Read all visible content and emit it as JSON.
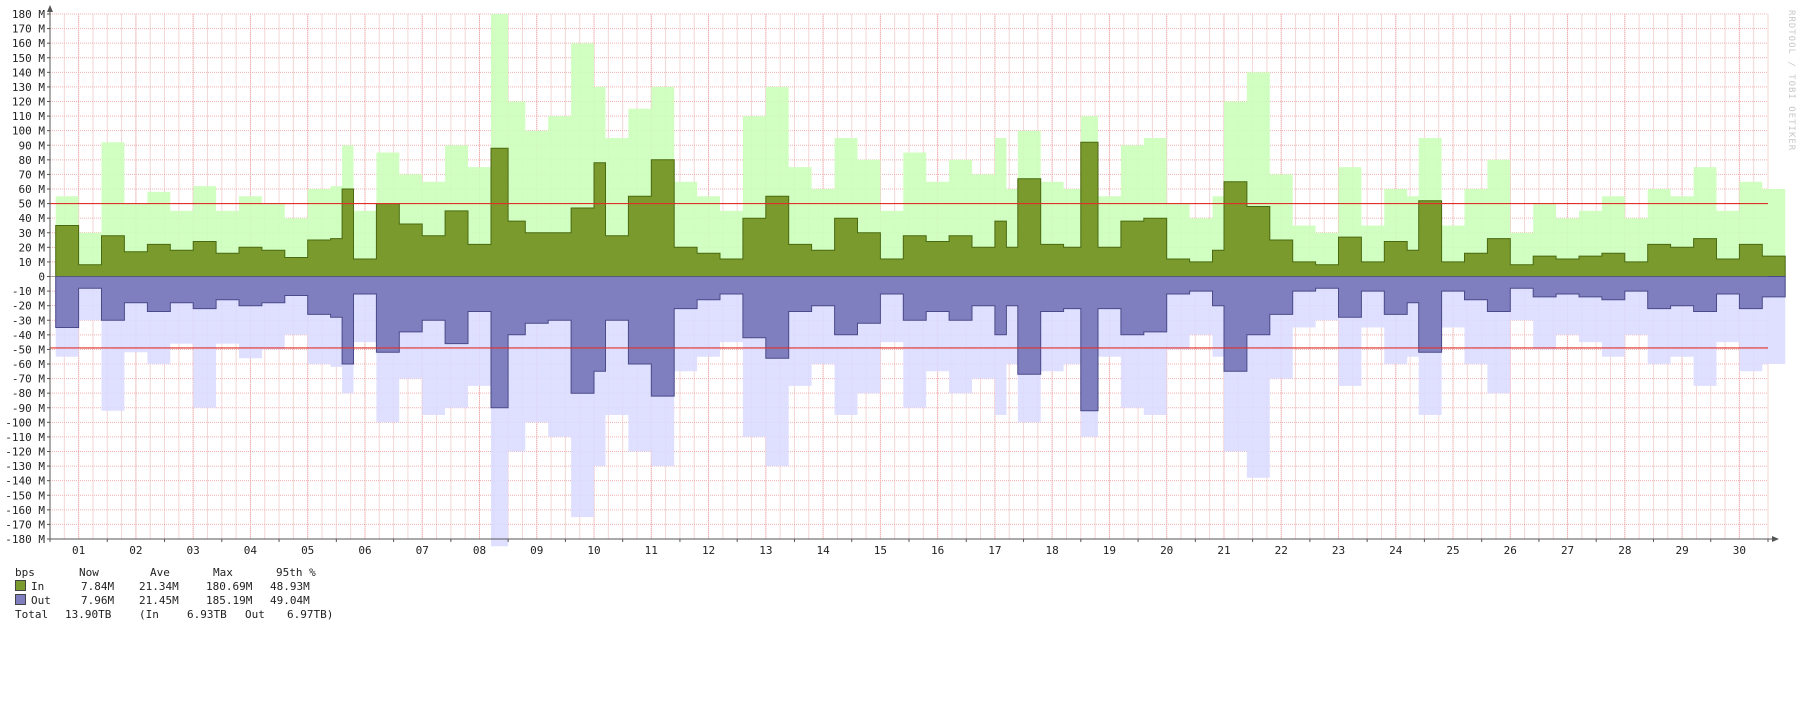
{
  "watermark": "RRDTOOL / TOBI OETIKER",
  "chart_data": {
    "type": "area",
    "title": "",
    "xlabel": "",
    "ylabel": "",
    "ylim": [
      -180,
      180
    ],
    "unit_suffix": "M",
    "yticks": [
      180,
      170,
      160,
      150,
      140,
      130,
      120,
      110,
      100,
      90,
      80,
      70,
      60,
      50,
      40,
      30,
      20,
      10,
      0,
      -10,
      -20,
      -30,
      -40,
      -50,
      -60,
      -70,
      -80,
      -90,
      -100,
      -110,
      -120,
      -130,
      -140,
      -150,
      -160,
      -170,
      -180
    ],
    "ytick_labels": [
      "180 M",
      "170 M",
      "160 M",
      "150 M",
      "140 M",
      "130 M",
      "120 M",
      "110 M",
      "100 M",
      "90 M",
      "80 M",
      "70 M",
      "60 M",
      "50 M",
      "40 M",
      "30 M",
      "20 M",
      "10 M",
      "0",
      "-10 M",
      "-20 M",
      "-30 M",
      "-40 M",
      "-50 M",
      "-60 M",
      "-70 M",
      "-80 M",
      "-90 M",
      "-100 M",
      "-110 M",
      "-120 M",
      "-130 M",
      "-140 M",
      "-150 M",
      "-160 M",
      "-170 M",
      "-180 M"
    ],
    "x_range_days": [
      0.5,
      30.5
    ],
    "xtick_labels": [
      "01",
      "02",
      "03",
      "04",
      "05",
      "06",
      "07",
      "08",
      "09",
      "10",
      "11",
      "12",
      "13",
      "14",
      "15",
      "16",
      "17",
      "18",
      "19",
      "20",
      "21",
      "22",
      "23",
      "24",
      "25",
      "26",
      "27",
      "28",
      "29",
      "30"
    ],
    "threshold_lines": [
      50,
      -49
    ],
    "grid": true,
    "colors": {
      "in_avg": "#7a9a2e",
      "in_max": "#ccffbb",
      "out_avg": "#7f7fbf",
      "out_max": "#dcdcff",
      "threshold": "#e0302a",
      "grid_minor": "#f4d6d6",
      "grid_major": "#f0b0b0",
      "axis": "#555555"
    },
    "series": [
      {
        "name": "In",
        "kind": "average",
        "x": [
          0.6,
          1.0,
          1.4,
          1.8,
          2.2,
          2.6,
          3.0,
          3.4,
          3.8,
          4.2,
          4.6,
          5.0,
          5.4,
          5.6,
          5.8,
          6.2,
          6.6,
          7.0,
          7.4,
          7.8,
          8.2,
          8.5,
          8.8,
          9.2,
          9.6,
          10.0,
          10.2,
          10.6,
          11.0,
          11.4,
          11.8,
          12.2,
          12.6,
          13.0,
          13.4,
          13.8,
          14.2,
          14.6,
          15.0,
          15.4,
          15.8,
          16.2,
          16.6,
          17.0,
          17.2,
          17.4,
          17.8,
          18.2,
          18.5,
          18.8,
          19.2,
          19.6,
          20.0,
          20.4,
          20.8,
          21.0,
          21.4,
          21.8,
          22.2,
          22.6,
          23.0,
          23.4,
          23.8,
          24.2,
          24.4,
          24.8,
          25.2,
          25.6,
          26.0,
          26.4,
          26.8,
          27.2,
          27.6,
          28.0,
          28.4,
          28.8,
          29.2,
          29.6,
          30.0,
          30.4
        ],
        "values": [
          35,
          8,
          28,
          17,
          22,
          18,
          24,
          16,
          20,
          18,
          13,
          25,
          26,
          60,
          12,
          50,
          36,
          28,
          45,
          22,
          88,
          38,
          30,
          30,
          47,
          78,
          28,
          55,
          80,
          20,
          16,
          12,
          40,
          55,
          22,
          18,
          40,
          30,
          12,
          28,
          24,
          28,
          20,
          38,
          20,
          67,
          22,
          20,
          92,
          20,
          38,
          40,
          12,
          10,
          18,
          65,
          48,
          25,
          10,
          8,
          27,
          10,
          24,
          18,
          52,
          10,
          16,
          26,
          8,
          14,
          12,
          14,
          16,
          10,
          22,
          20,
          26,
          12,
          22,
          14
        ]
      },
      {
        "name": "In",
        "kind": "maximum",
        "x": [
          0.6,
          1.0,
          1.4,
          1.8,
          2.2,
          2.6,
          3.0,
          3.4,
          3.8,
          4.2,
          4.6,
          5.0,
          5.4,
          5.6,
          5.8,
          6.2,
          6.6,
          7.0,
          7.4,
          7.8,
          8.2,
          8.5,
          8.8,
          9.2,
          9.6,
          10.0,
          10.2,
          10.6,
          11.0,
          11.4,
          11.8,
          12.2,
          12.6,
          13.0,
          13.4,
          13.8,
          14.2,
          14.6,
          15.0,
          15.4,
          15.8,
          16.2,
          16.6,
          17.0,
          17.2,
          17.4,
          17.8,
          18.2,
          18.5,
          18.8,
          19.2,
          19.6,
          20.0,
          20.4,
          20.8,
          21.0,
          21.4,
          21.8,
          22.2,
          22.6,
          23.0,
          23.4,
          23.8,
          24.2,
          24.4,
          24.8,
          25.2,
          25.6,
          26.0,
          26.4,
          26.8,
          27.2,
          27.6,
          28.0,
          28.4,
          28.8,
          29.2,
          29.6,
          30.0,
          30.4
        ],
        "values": [
          55,
          30,
          92,
          50,
          58,
          45,
          62,
          45,
          55,
          50,
          40,
          60,
          62,
          90,
          45,
          85,
          70,
          65,
          90,
          75,
          180,
          120,
          100,
          110,
          160,
          130,
          95,
          115,
          130,
          65,
          55,
          45,
          110,
          130,
          75,
          60,
          95,
          80,
          45,
          85,
          65,
          80,
          70,
          95,
          60,
          100,
          65,
          60,
          110,
          55,
          90,
          95,
          50,
          40,
          55,
          120,
          140,
          70,
          35,
          30,
          75,
          35,
          60,
          55,
          95,
          35,
          60,
          80,
          30,
          50,
          40,
          45,
          55,
          40,
          60,
          55,
          75,
          45,
          65,
          60
        ]
      },
      {
        "name": "Out",
        "kind": "average",
        "x": [
          0.6,
          1.0,
          1.4,
          1.8,
          2.2,
          2.6,
          3.0,
          3.4,
          3.8,
          4.2,
          4.6,
          5.0,
          5.4,
          5.6,
          5.8,
          6.2,
          6.6,
          7.0,
          7.4,
          7.8,
          8.2,
          8.5,
          8.8,
          9.2,
          9.6,
          10.0,
          10.2,
          10.6,
          11.0,
          11.4,
          11.8,
          12.2,
          12.6,
          13.0,
          13.4,
          13.8,
          14.2,
          14.6,
          15.0,
          15.4,
          15.8,
          16.2,
          16.6,
          17.0,
          17.2,
          17.4,
          17.8,
          18.2,
          18.5,
          18.8,
          19.2,
          19.6,
          20.0,
          20.4,
          20.8,
          21.0,
          21.4,
          21.8,
          22.2,
          22.6,
          23.0,
          23.4,
          23.8,
          24.2,
          24.4,
          24.8,
          25.2,
          25.6,
          26.0,
          26.4,
          26.8,
          27.2,
          27.6,
          28.0,
          28.4,
          28.8,
          29.2,
          29.6,
          30.0,
          30.4
        ],
        "values": [
          -35,
          -8,
          -30,
          -18,
          -24,
          -18,
          -22,
          -16,
          -20,
          -18,
          -13,
          -26,
          -28,
          -60,
          -12,
          -52,
          -38,
          -30,
          -46,
          -24,
          -90,
          -40,
          -32,
          -30,
          -80,
          -65,
          -30,
          -60,
          -82,
          -22,
          -16,
          -12,
          -42,
          -56,
          -24,
          -20,
          -40,
          -32,
          -12,
          -30,
          -24,
          -30,
          -20,
          -40,
          -20,
          -67,
          -24,
          -22,
          -92,
          -22,
          -40,
          -38,
          -12,
          -10,
          -20,
          -65,
          -40,
          -26,
          -10,
          -8,
          -28,
          -10,
          -26,
          -18,
          -52,
          -10,
          -16,
          -24,
          -8,
          -14,
          -12,
          -14,
          -16,
          -10,
          -22,
          -20,
          -24,
          -12,
          -22,
          -14
        ]
      },
      {
        "name": "Out",
        "kind": "maximum",
        "x": [
          0.6,
          1.0,
          1.4,
          1.8,
          2.2,
          2.6,
          3.0,
          3.4,
          3.8,
          4.2,
          4.6,
          5.0,
          5.4,
          5.6,
          5.8,
          6.2,
          6.6,
          7.0,
          7.4,
          7.8,
          8.2,
          8.5,
          8.8,
          9.2,
          9.6,
          10.0,
          10.2,
          10.6,
          11.0,
          11.4,
          11.8,
          12.2,
          12.6,
          13.0,
          13.4,
          13.8,
          14.2,
          14.6,
          15.0,
          15.4,
          15.8,
          16.2,
          16.6,
          17.0,
          17.2,
          17.4,
          17.8,
          18.2,
          18.5,
          18.8,
          19.2,
          19.6,
          20.0,
          20.4,
          20.8,
          21.0,
          21.4,
          21.8,
          22.2,
          22.6,
          23.0,
          23.4,
          23.8,
          24.2,
          24.4,
          24.8,
          25.2,
          25.6,
          26.0,
          26.4,
          26.8,
          27.2,
          27.6,
          28.0,
          28.4,
          28.8,
          29.2,
          29.6,
          30.0,
          30.4
        ],
        "values": [
          -55,
          -30,
          -92,
          -52,
          -60,
          -46,
          -90,
          -46,
          -56,
          -50,
          -40,
          -60,
          -62,
          -80,
          -45,
          -100,
          -70,
          -95,
          -90,
          -75,
          -185,
          -120,
          -100,
          -110,
          -165,
          -130,
          -95,
          -120,
          -130,
          -65,
          -55,
          -45,
          -110,
          -130,
          -75,
          -60,
          -95,
          -80,
          -45,
          -90,
          -65,
          -80,
          -70,
          -95,
          -60,
          -100,
          -65,
          -60,
          -110,
          -55,
          -90,
          -95,
          -50,
          -40,
          -55,
          -120,
          -138,
          -70,
          -35,
          -30,
          -75,
          -35,
          -60,
          -55,
          -95,
          -35,
          -60,
          -80,
          -30,
          -50,
          -40,
          -45,
          -55,
          -40,
          -60,
          -55,
          -75,
          -45,
          -65,
          -60
        ]
      }
    ]
  },
  "legend": {
    "header": [
      "bps",
      "Now",
      "Ave",
      "Max",
      "95th %"
    ],
    "rows": [
      {
        "name": "In",
        "color": "#7a9a2e",
        "now": "7.84M",
        "ave": "21.34M",
        "max": "180.69M",
        "p95": "48.93M"
      },
      {
        "name": "Out",
        "color": "#7f7fbf",
        "now": "7.96M",
        "ave": "21.45M",
        "max": "185.19M",
        "p95": "49.04M"
      }
    ],
    "total": {
      "label": "Total",
      "total": "13.90TB",
      "in_label": "(In",
      "in": "6.93TB",
      "out_label": "Out",
      "out": "6.97TB)"
    }
  }
}
